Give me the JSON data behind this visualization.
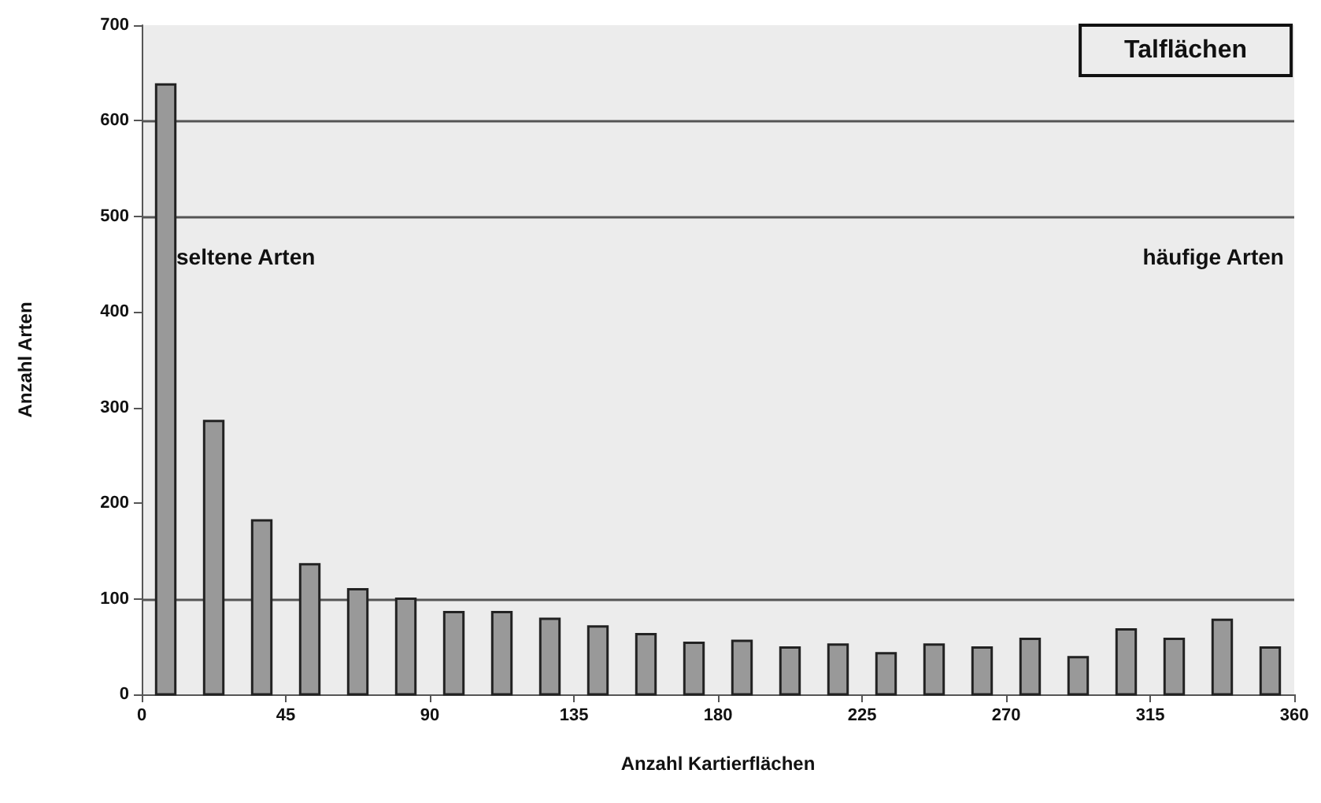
{
  "chart_data": {
    "type": "histogram",
    "title": "Talflächen",
    "xlabel": "Anzahl Kartierflächen",
    "ylabel": "Anzahl Arten",
    "bins": [
      0,
      15,
      30,
      45,
      60,
      75,
      90,
      105,
      120,
      135,
      150,
      165,
      180,
      195,
      210,
      225,
      240,
      255,
      270,
      285,
      300,
      315,
      330,
      345,
      360
    ],
    "values": [
      638,
      286,
      182,
      136,
      110,
      100,
      86,
      86,
      79,
      71,
      63,
      54,
      56,
      49,
      52,
      43,
      52,
      49,
      58,
      39,
      68,
      58,
      78,
      49
    ],
    "color": "#999999",
    "xlim": [
      0,
      360
    ],
    "xticks": [
      0,
      45,
      90,
      135,
      180,
      225,
      270,
      315,
      360
    ],
    "ylim": [
      0,
      700
    ],
    "yticks": [
      0,
      100,
      200,
      300,
      400,
      500,
      600,
      700
    ],
    "ref_lines": [
      {
        "axis": "y",
        "value": 100,
        "color": "#555555"
      },
      {
        "axis": "y",
        "value": 500,
        "color": "#555555"
      },
      {
        "axis": "y",
        "value": 600,
        "color": "#555555"
      }
    ],
    "annotations": [
      "seltene Arten",
      "häufige Arten"
    ]
  }
}
